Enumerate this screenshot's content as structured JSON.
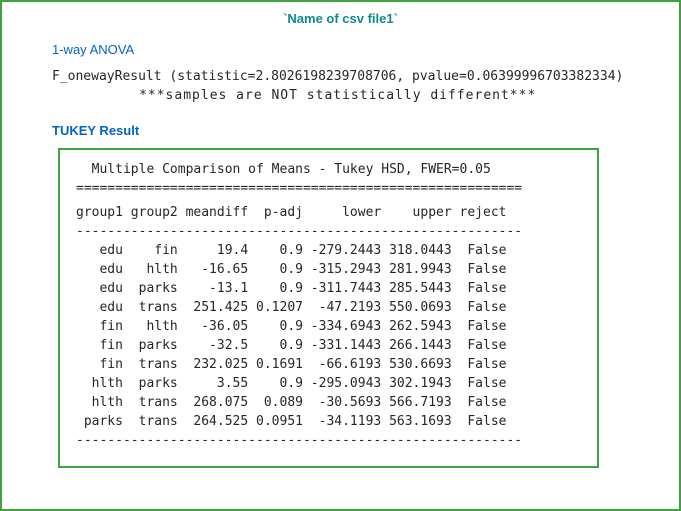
{
  "colors": {
    "border_green": "#3fa23f",
    "heading_blue": "#0563c1",
    "title_teal": "#0f8b8b",
    "text": "#262626"
  },
  "header": {
    "title": "`Name of csv file1`"
  },
  "anova": {
    "heading": "1-way ANOVA",
    "result": "F_onewayResult (statistic=2.8026198239708706, pvalue=0.06399996703382334)",
    "conclusion": "***samples are NOT statistically different***"
  },
  "tukey": {
    "heading": "TUKEY Result",
    "title": "Multiple Comparison of Means - Tukey HSD, FWER=0.05",
    "sep_equals": "=========================================================",
    "sep_dashes": "---------------------------------------------------------",
    "columns": [
      "group1",
      "group2",
      "meandiff",
      "p-adj",
      "lower",
      "upper",
      "reject"
    ],
    "rows": [
      [
        "edu",
        "fin",
        "19.4",
        "0.9",
        "-279.2443",
        "318.0443",
        "False"
      ],
      [
        "edu",
        "hlth",
        "-16.65",
        "0.9",
        "-315.2943",
        "281.9943",
        "False"
      ],
      [
        "edu",
        "parks",
        "-13.1",
        "0.9",
        "-311.7443",
        "285.5443",
        "False"
      ],
      [
        "edu",
        "trans",
        "251.425",
        "0.1207",
        "-47.2193",
        "550.0693",
        "False"
      ],
      [
        "fin",
        "hlth",
        "-36.05",
        "0.9",
        "-334.6943",
        "262.5943",
        "False"
      ],
      [
        "fin",
        "parks",
        "-32.5",
        "0.9",
        "-331.1443",
        "266.1443",
        "False"
      ],
      [
        "fin",
        "trans",
        "232.025",
        "0.1691",
        "-66.6193",
        "530.6693",
        "False"
      ],
      [
        "hlth",
        "parks",
        "3.55",
        "0.9",
        "-295.0943",
        "302.1943",
        "False"
      ],
      [
        "hlth",
        "trans",
        "268.075",
        "0.089",
        "-30.5693",
        "566.7193",
        "False"
      ],
      [
        "parks",
        "trans",
        "264.525",
        "0.0951",
        "-34.1193",
        "563.1693",
        "False"
      ]
    ]
  }
}
